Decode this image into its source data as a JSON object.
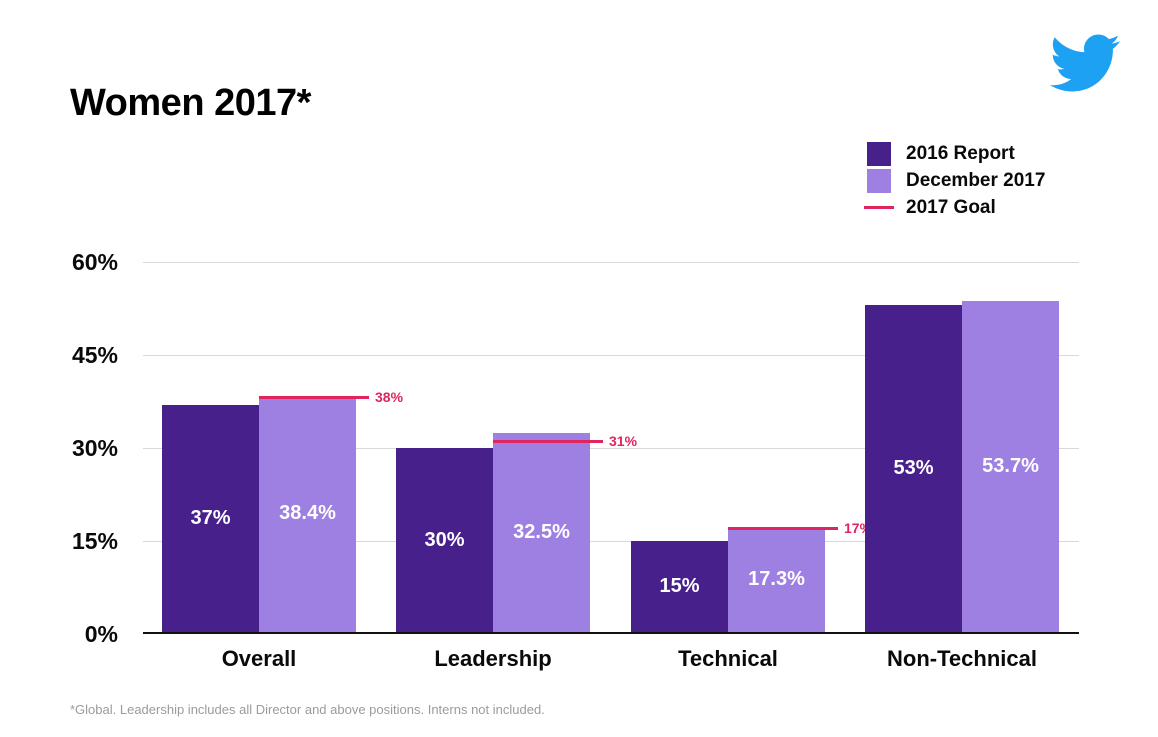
{
  "title": "Women 2017*",
  "footnote": "*Global. Leadership includes all Director and above positions. Interns not included.",
  "logo": {
    "label": "Twitter bird",
    "color": "#1DA1F2"
  },
  "legend": [
    {
      "label": "2016 Report",
      "swatch": "square",
      "color": "#48208C"
    },
    {
      "label": "December 2017",
      "swatch": "square",
      "color": "#9E80E3"
    },
    {
      "label": "2017 Goal",
      "swatch": "line",
      "color": "#E0245E"
    }
  ],
  "chart_data": {
    "type": "bar",
    "title": "Women 2017*",
    "categories": [
      "Overall",
      "Leadership",
      "Technical",
      "Non-Technical"
    ],
    "series": [
      {
        "name": "2016 Report",
        "color": "#48208C",
        "values": [
          37,
          30,
          15,
          53
        ],
        "value_labels": [
          "37%",
          "30%",
          "15%",
          "53%"
        ]
      },
      {
        "name": "December 2017",
        "color": "#9E80E3",
        "values": [
          38.4,
          32.5,
          17.3,
          53.7
        ],
        "value_labels": [
          "38.4%",
          "32.5%",
          "17.3%",
          "53.7%"
        ]
      }
    ],
    "goal_series": {
      "name": "2017 Goal",
      "color": "#E0245E",
      "values": [
        38,
        31,
        17,
        null
      ],
      "value_labels": [
        "38%",
        "31%",
        "17%",
        null
      ]
    },
    "xlabel": "",
    "ylabel": "",
    "ylim": [
      0,
      60
    ],
    "y_ticks": [
      0,
      15,
      30,
      45,
      60
    ],
    "y_tick_labels": [
      "0%",
      "15%",
      "30%",
      "45%",
      "60%"
    ],
    "grid": true,
    "legend_position": "top-right",
    "bar_value_label_color": "#FFFFFF"
  }
}
